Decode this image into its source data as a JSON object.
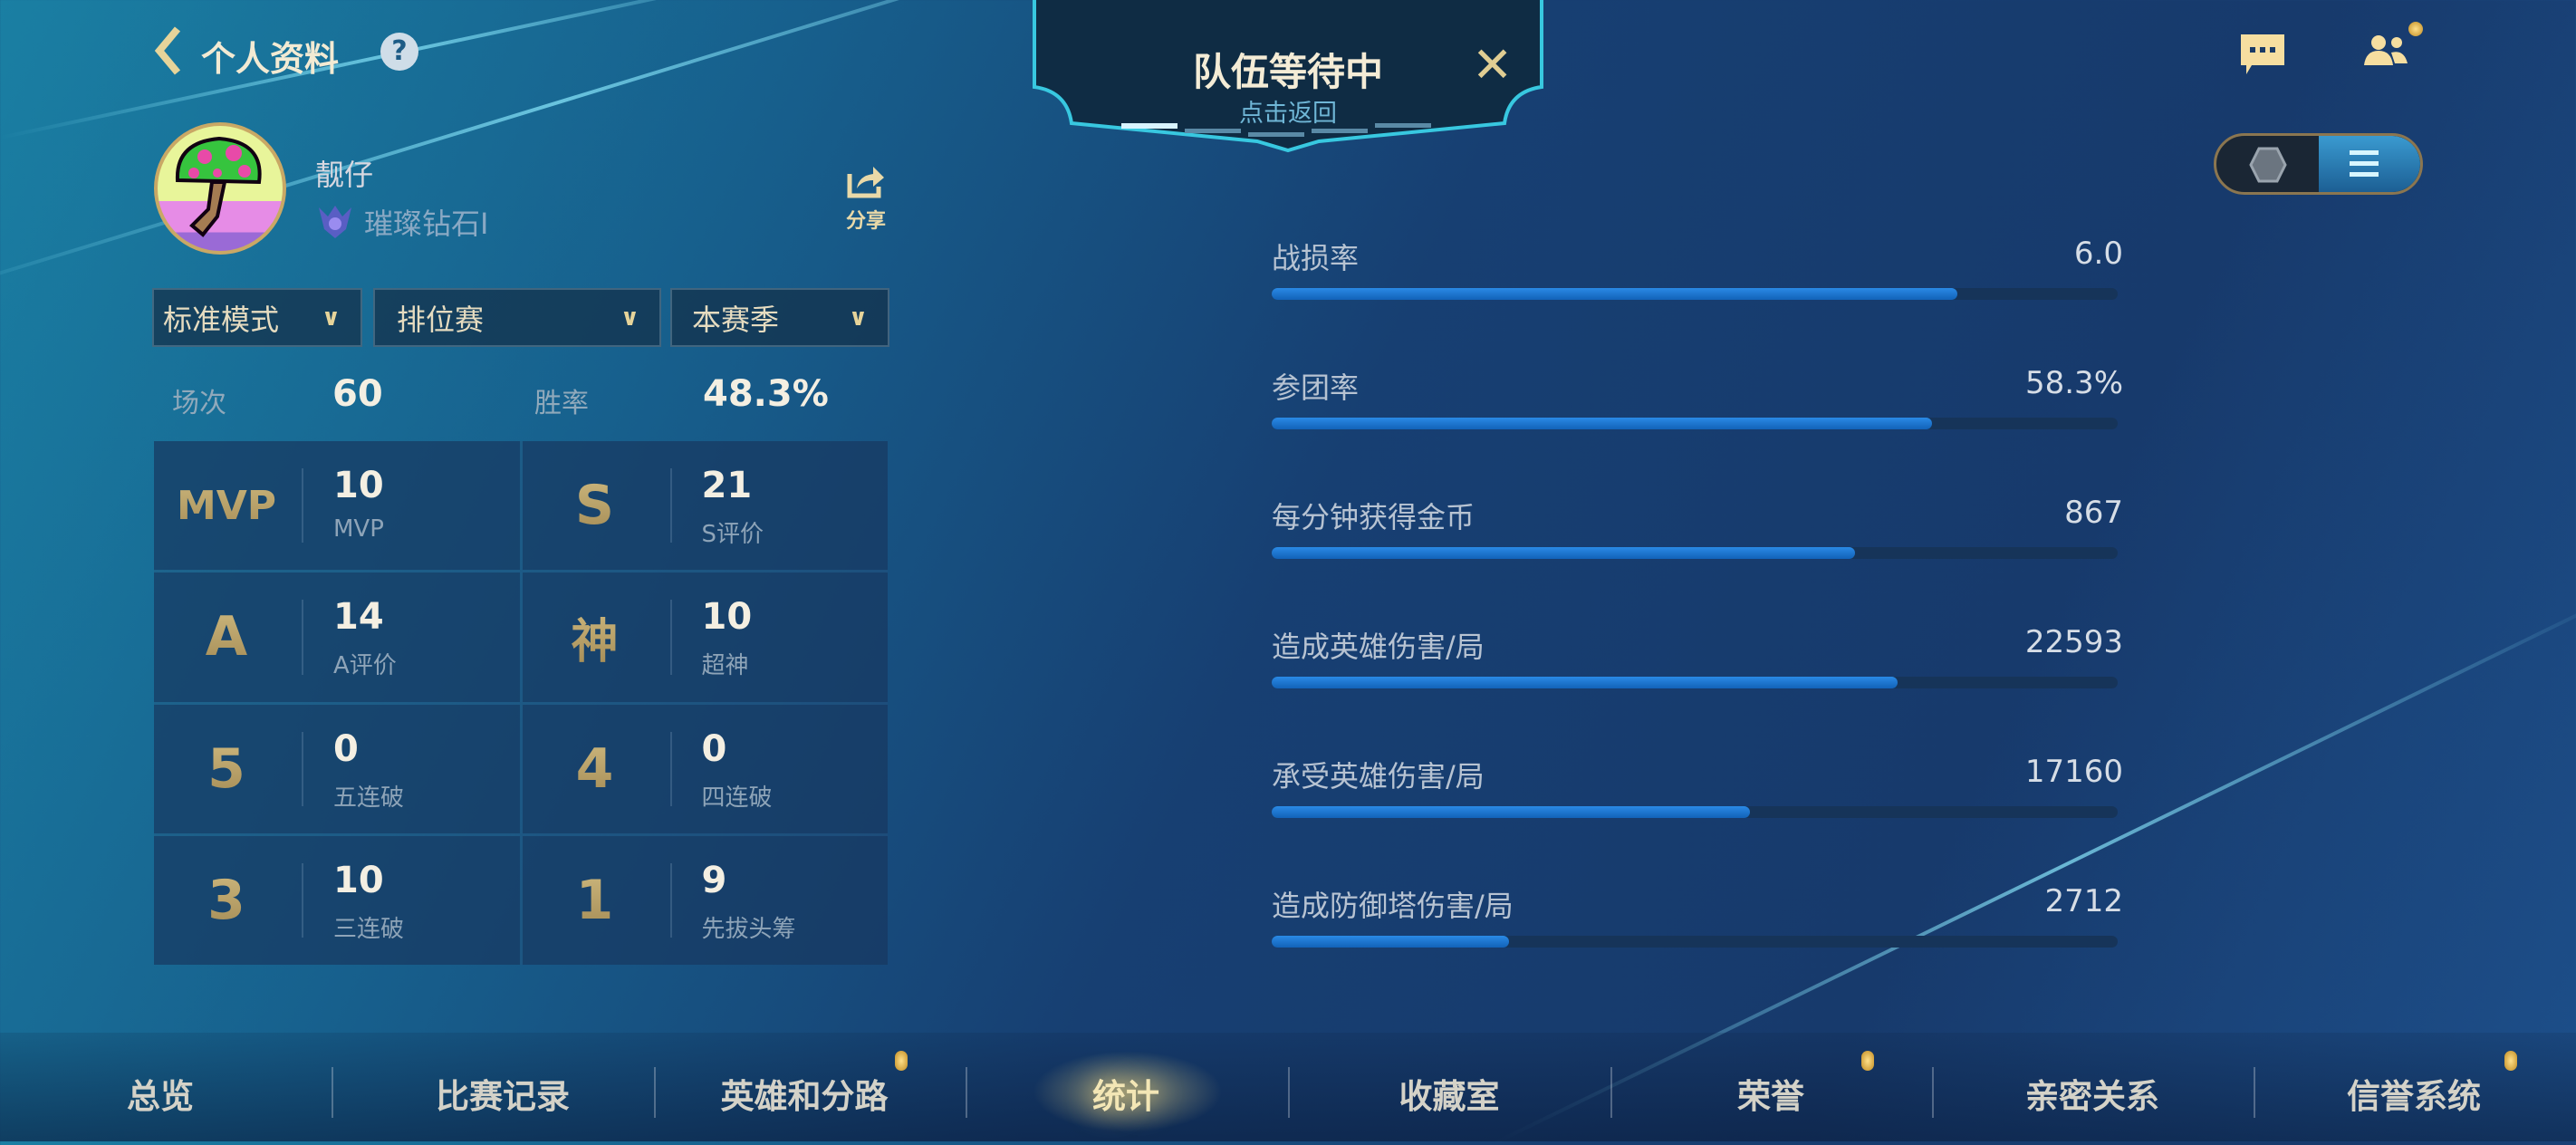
{
  "header": {
    "back_icon": "chevron-left-icon",
    "title": "个人资料",
    "help_icon": "question-icon",
    "help_label": "?"
  },
  "queue_banner": {
    "title": "队伍等待中",
    "subtitle": "点击返回",
    "close_label": "✕"
  },
  "top_right": {
    "chat_icon": "chat-bubble-icon",
    "friends_icon": "friends-icon",
    "view_toggle": {
      "options": [
        "hexagon-view-icon",
        "list-view-icon"
      ],
      "selected": "list-view-icon"
    }
  },
  "profile": {
    "name": "靓仔",
    "rank": "璀璨钻石I",
    "share_label": "分享"
  },
  "filters": [
    {
      "label": "标准模式"
    },
    {
      "label": "排位赛"
    },
    {
      "label": "本赛季"
    }
  ],
  "summary": {
    "games_label": "场次",
    "games_value": "60",
    "winrate_label": "胜率",
    "winrate_value": "48.3%"
  },
  "badges": [
    {
      "emblem": "MVP",
      "value": "10",
      "label": "MVP"
    },
    {
      "emblem": "S",
      "value": "21",
      "label": "S评价"
    },
    {
      "emblem": "A",
      "value": "14",
      "label": "A评价"
    },
    {
      "emblem": "神",
      "value": "10",
      "label": "超神"
    },
    {
      "emblem": "5",
      "value": "0",
      "label": "五连破"
    },
    {
      "emblem": "4",
      "value": "0",
      "label": "四连破"
    },
    {
      "emblem": "3",
      "value": "10",
      "label": "三连破"
    },
    {
      "emblem": "1",
      "value": "9",
      "label": "先拔头筹"
    }
  ],
  "stats": [
    {
      "label": "战损率",
      "value": "6.0",
      "fill": 0.81
    },
    {
      "label": "参团率",
      "value": "58.3%",
      "fill": 0.78
    },
    {
      "label": "每分钟获得金币",
      "value": "867",
      "fill": 0.69
    },
    {
      "label": "造成英雄伤害/局",
      "value": "22593",
      "fill": 0.74
    },
    {
      "label": "承受英雄伤害/局",
      "value": "17160",
      "fill": 0.565
    },
    {
      "label": "造成防御塔伤害/局",
      "value": "2712",
      "fill": 0.28
    }
  ],
  "nav": {
    "active": "统计",
    "items": [
      {
        "label": "总览",
        "dot": false
      },
      {
        "label": "比赛记录",
        "dot": false
      },
      {
        "label": "英雄和分路",
        "dot": true
      },
      {
        "label": "统计",
        "dot": false
      },
      {
        "label": "收藏室",
        "dot": false
      },
      {
        "label": "荣誉",
        "dot": true
      },
      {
        "label": "亲密关系",
        "dot": false
      },
      {
        "label": "信誉系统",
        "dot": true
      }
    ]
  },
  "colors": {
    "accent_gold": "#e9d9a8",
    "bar_fill": "#1f7ad6",
    "bar_track": "#163459",
    "notification_dot": "#e0a830"
  }
}
